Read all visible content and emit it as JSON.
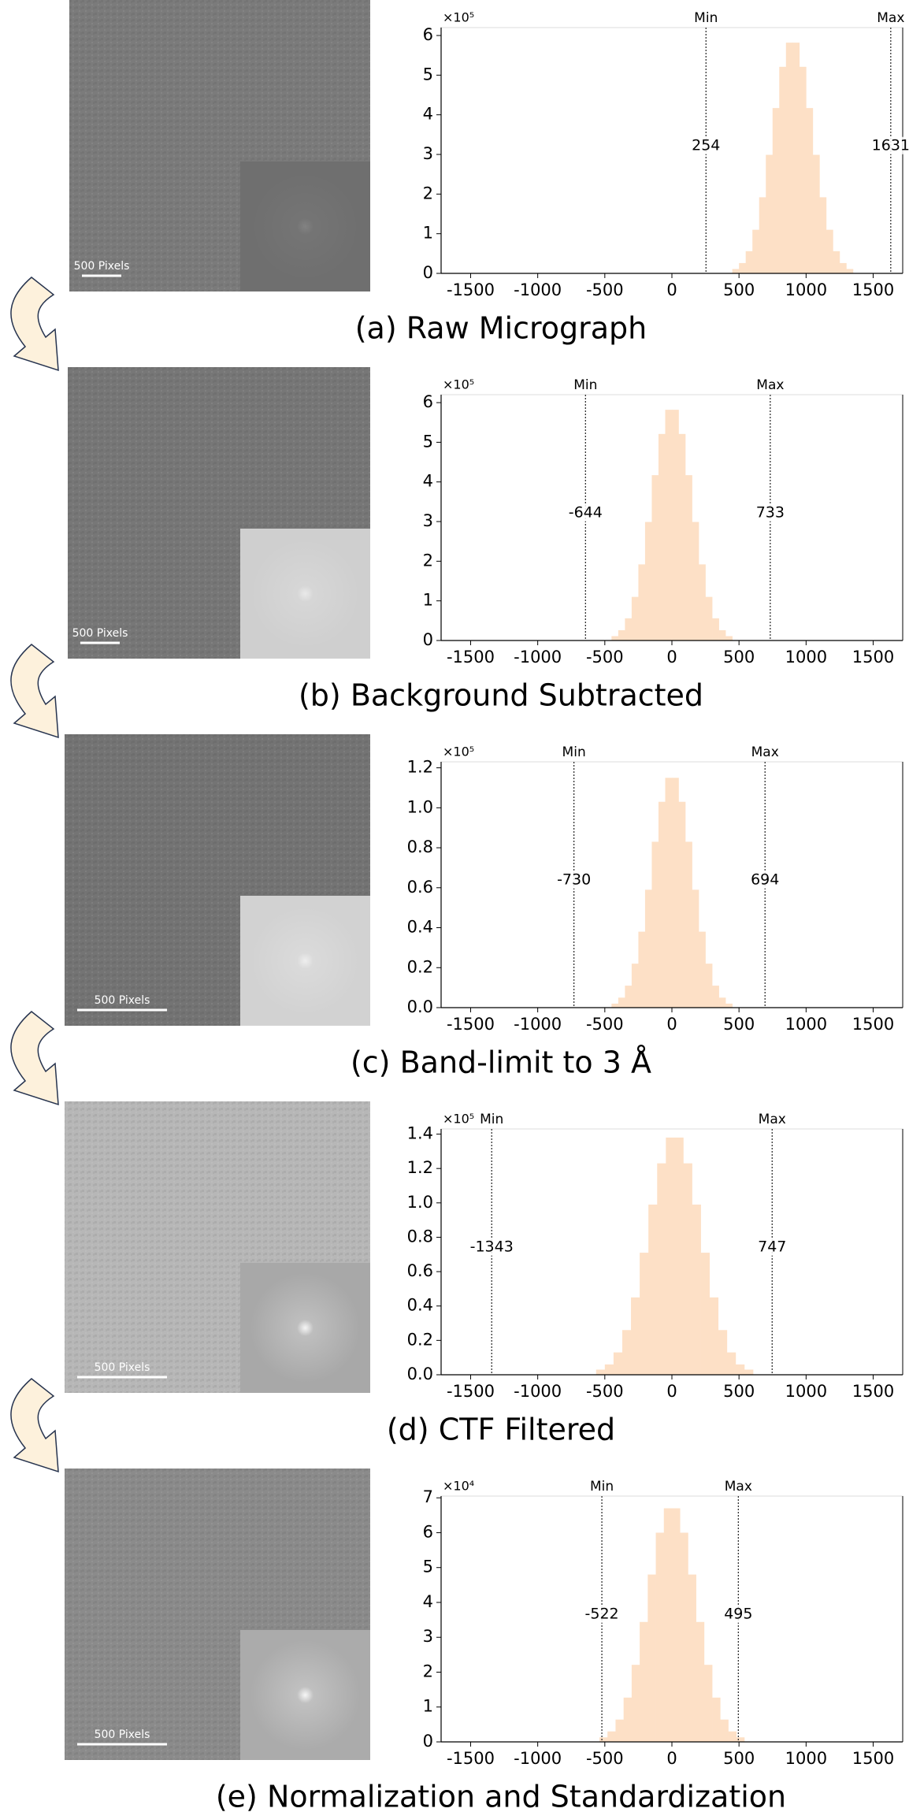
{
  "chart_data": [
    {
      "type": "histogram",
      "title": "(a) Raw Micrograph",
      "scale_bar": "500 Pixels",
      "y_multiplier": "×10⁵",
      "color": "#fde0c6",
      "bins": [
        450,
        500,
        550,
        600,
        650,
        700,
        750,
        800,
        850,
        900,
        950,
        1000,
        1050,
        1100,
        1150,
        1200,
        1250,
        1300,
        1350
      ],
      "values": [
        0.11,
        0.26,
        0.56,
        1.1,
        1.92,
        2.99,
        4.17,
        5.21,
        5.82,
        5.82,
        5.21,
        4.17,
        2.99,
        1.92,
        1.1,
        0.56,
        0.26,
        0.11
      ],
      "lines": [
        {
          "name": "Min",
          "x": 254
        },
        {
          "name": "Max",
          "x": 1631
        }
      ],
      "xlim": [
        -1720,
        1720
      ],
      "xticks": [
        -1500,
        -1000,
        -500,
        0,
        500,
        1000,
        1500
      ],
      "ylim": [
        0,
        6.2
      ],
      "yticks": [
        0,
        1,
        2,
        3,
        4,
        5,
        6
      ]
    },
    {
      "type": "histogram",
      "title": "(b) Background Subtracted",
      "scale_bar": "500 Pixels",
      "y_multiplier": "×10⁵",
      "color": "#fde0c6",
      "bins": [
        -450,
        -400,
        -350,
        -300,
        -250,
        -200,
        -150,
        -100,
        -50,
        0,
        50,
        100,
        150,
        200,
        250,
        300,
        350,
        400,
        450
      ],
      "values": [
        0.11,
        0.26,
        0.56,
        1.1,
        1.92,
        2.99,
        4.17,
        5.21,
        5.82,
        5.82,
        5.21,
        4.17,
        2.99,
        1.92,
        1.1,
        0.56,
        0.26,
        0.11
      ],
      "lines": [
        {
          "name": "Min",
          "x": -644
        },
        {
          "name": "Max",
          "x": 733
        }
      ],
      "xlim": [
        -1720,
        1720
      ],
      "xticks": [
        -1500,
        -1000,
        -500,
        0,
        500,
        1000,
        1500
      ],
      "ylim": [
        0,
        6.2
      ],
      "yticks": [
        0,
        1,
        2,
        3,
        4,
        5,
        6
      ]
    },
    {
      "type": "histogram",
      "title": "(c) Band-limit to 3 Å",
      "scale_bar": "500 Pixels",
      "y_multiplier": "×10⁵",
      "color": "#fde0c6",
      "bins": [
        -450,
        -400,
        -350,
        -300,
        -250,
        -200,
        -150,
        -100,
        -50,
        0,
        50,
        100,
        150,
        200,
        250,
        300,
        350,
        400,
        450
      ],
      "values": [
        0.02,
        0.05,
        0.11,
        0.22,
        0.38,
        0.59,
        0.83,
        1.03,
        1.15,
        1.15,
        1.03,
        0.83,
        0.59,
        0.38,
        0.22,
        0.11,
        0.05,
        0.02
      ],
      "lines": [
        {
          "name": "Min",
          "x": -730
        },
        {
          "name": "Max",
          "x": 694
        }
      ],
      "xlim": [
        -1720,
        1720
      ],
      "xticks": [
        -1500,
        -1000,
        -500,
        0,
        500,
        1000,
        1500
      ],
      "ylim": [
        0,
        1.23
      ],
      "yticks": [
        {
          "value": 0,
          "label": "0.0"
        },
        0.2,
        0.4,
        0.6,
        0.8,
        {
          "value": 1,
          "label": "1.0"
        },
        1.2
      ]
    },
    {
      "type": "histogram",
      "title": "(d) CTF Filtered",
      "scale_bar": "500 Pixels",
      "y_multiplier": "×10⁵",
      "color": "#fde0c6",
      "bins": [
        -565,
        -500,
        -435,
        -370,
        -305,
        -240,
        -175,
        -110,
        -45,
        20,
        85,
        150,
        215,
        280,
        345,
        410,
        475,
        540,
        605
      ],
      "values": [
        0.03,
        0.06,
        0.13,
        0.26,
        0.45,
        0.71,
        0.99,
        1.23,
        1.38,
        1.38,
        1.23,
        0.99,
        0.71,
        0.45,
        0.26,
        0.13,
        0.06,
        0.03
      ],
      "lines": [
        {
          "name": "Min",
          "x": -1343
        },
        {
          "name": "Max",
          "x": 747
        }
      ],
      "xlim": [
        -1720,
        1720
      ],
      "xticks": [
        -1500,
        -1000,
        -500,
        0,
        500,
        1000,
        1500
      ],
      "ylim": [
        0,
        1.43
      ],
      "yticks": [
        {
          "value": 0,
          "label": "0.0"
        },
        0.2,
        0.4,
        0.6,
        0.8,
        {
          "value": 1,
          "label": "1.0"
        },
        1.2,
        1.4
      ]
    },
    {
      "type": "histogram",
      "title": "(e) Normalization and Standardization",
      "scale_bar": "500 Pixels",
      "y_multiplier": "×10⁴",
      "color": "#fde0c6",
      "bins": [
        -540,
        -480,
        -420,
        -360,
        -300,
        -240,
        -180,
        -120,
        -60,
        0,
        60,
        120,
        180,
        240,
        300,
        360,
        420,
        480,
        540
      ],
      "values": [
        0.13,
        0.3,
        0.64,
        1.27,
        2.21,
        3.44,
        4.8,
        6.0,
        6.7,
        6.7,
        6.0,
        4.8,
        3.44,
        2.21,
        1.27,
        0.64,
        0.3,
        0.13
      ],
      "lines": [
        {
          "name": "Min",
          "x": -522
        },
        {
          "name": "Max",
          "x": 495
        }
      ],
      "xlim": [
        -1720,
        1720
      ],
      "xticks": [
        -1500,
        -1000,
        -500,
        0,
        500,
        1000,
        1500
      ],
      "ylim": [
        0,
        7.05
      ],
      "yticks": [
        0,
        1,
        2,
        3,
        4,
        5,
        6,
        7
      ]
    }
  ]
}
